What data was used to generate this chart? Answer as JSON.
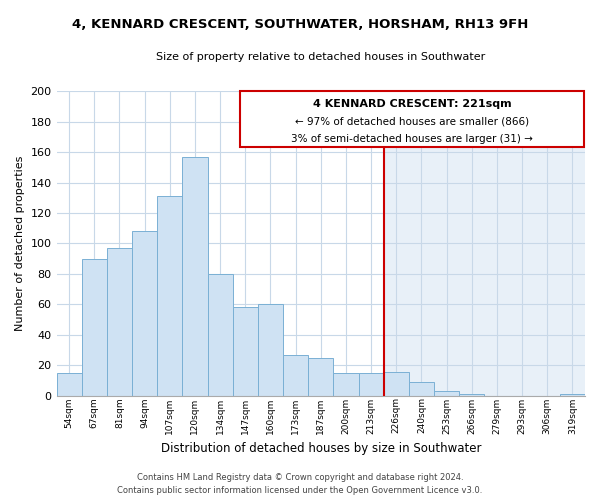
{
  "title": "4, KENNARD CRESCENT, SOUTHWATER, HORSHAM, RH13 9FH",
  "subtitle": "Size of property relative to detached houses in Southwater",
  "xlabel": "Distribution of detached houses by size in Southwater",
  "ylabel": "Number of detached properties",
  "bin_labels": [
    "54sqm",
    "67sqm",
    "81sqm",
    "94sqm",
    "107sqm",
    "120sqm",
    "134sqm",
    "147sqm",
    "160sqm",
    "173sqm",
    "187sqm",
    "200sqm",
    "213sqm",
    "226sqm",
    "240sqm",
    "253sqm",
    "266sqm",
    "279sqm",
    "293sqm",
    "306sqm",
    "319sqm"
  ],
  "bar_heights": [
    15,
    90,
    97,
    108,
    131,
    157,
    80,
    58,
    60,
    27,
    25,
    15,
    15,
    16,
    9,
    3,
    1,
    0,
    0,
    0,
    1
  ],
  "bar_color": "#cfe2f3",
  "bar_edge_color": "#7ab0d4",
  "grid_color": "#c8d8e8",
  "right_bg_color": "#e8f0f8",
  "vline_x_index": 13,
  "vline_color": "#cc0000",
  "annotation_title": "4 KENNARD CRESCENT: 221sqm",
  "annotation_line1": "← 97% of detached houses are smaller (866)",
  "annotation_line2": "3% of semi-detached houses are larger (31) →",
  "annotation_box_color": "#ffffff",
  "annotation_border_color": "#cc0000",
  "footer_line1": "Contains HM Land Registry data © Crown copyright and database right 2024.",
  "footer_line2": "Contains public sector information licensed under the Open Government Licence v3.0.",
  "ylim": [
    0,
    200
  ],
  "yticks": [
    0,
    20,
    40,
    60,
    80,
    100,
    120,
    140,
    160,
    180,
    200
  ],
  "background_color": "#ffffff",
  "figsize": [
    6.0,
    5.0
  ],
  "dpi": 100
}
